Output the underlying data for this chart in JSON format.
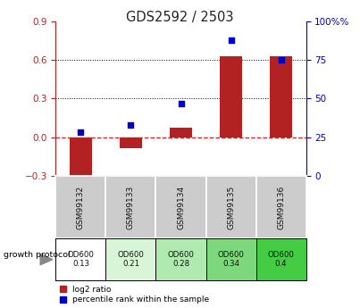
{
  "title": "GDS2592 / 2503",
  "samples": [
    "GSM99132",
    "GSM99133",
    "GSM99134",
    "GSM99135",
    "GSM99136"
  ],
  "log2_ratio": [
    -0.33,
    -0.09,
    0.07,
    0.63,
    0.63
  ],
  "percentile_rank": [
    28,
    33,
    47,
    88,
    75
  ],
  "left_ylim": [
    -0.3,
    0.9
  ],
  "right_ylim": [
    0,
    100
  ],
  "left_yticks": [
    -0.3,
    0.0,
    0.3,
    0.6,
    0.9
  ],
  "right_yticks": [
    0,
    25,
    50,
    75,
    100
  ],
  "bar_color": "#B22222",
  "dot_color": "#0000CC",
  "zero_line_color": "#CC2222",
  "grid_color": "#000000",
  "growth_protocol_labels": [
    "OD600\n0.13",
    "OD600\n0.21",
    "OD600\n0.28",
    "OD600\n0.34",
    "OD600\n0.4"
  ],
  "gp_colors": [
    "#ffffff",
    "#d8f5d8",
    "#b0eab0",
    "#7dd87d",
    "#44cc44"
  ],
  "sample_bg": "#cccccc",
  "fig_width": 4.03,
  "fig_height": 3.45
}
